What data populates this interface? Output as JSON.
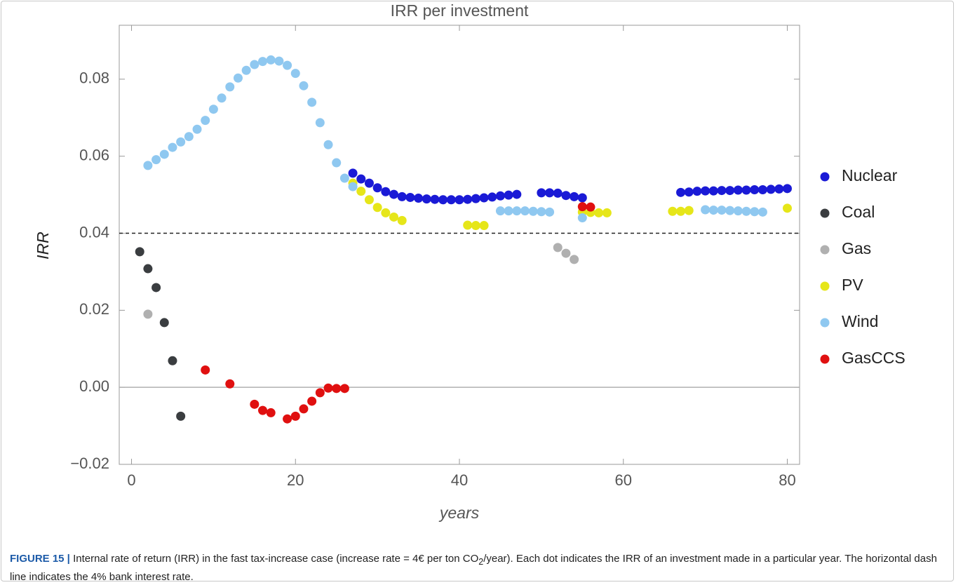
{
  "chart_data": {
    "type": "scatter",
    "title": "IRR per investment",
    "xlabel": "years",
    "ylabel": "IRR",
    "xlim": [
      -1.5,
      81.5
    ],
    "xticks": [
      0,
      20,
      40,
      60,
      80
    ],
    "ylim": [
      -0.02,
      0.094
    ],
    "yticks": [
      {
        "value": -0.02,
        "label": "−0.02"
      },
      {
        "value": 0,
        "label": "0.00"
      },
      0.02,
      0.04,
      0.06,
      0.08
    ],
    "hlines": [
      {
        "value": 0.04,
        "dashed": true,
        "color": "#222222"
      },
      {
        "value": 0,
        "dashed": false,
        "color": "#b0b0b0"
      }
    ],
    "legend": "right",
    "series": [
      {
        "name": "Nuclear",
        "color": "#1a1ad6",
        "x": [
          27,
          28,
          29,
          30,
          31,
          32,
          33,
          34,
          35,
          36,
          37,
          38,
          39,
          40,
          41,
          42,
          43,
          44,
          45,
          46,
          47,
          50,
          51,
          52,
          53,
          54,
          55,
          67,
          68,
          69,
          70,
          71,
          72,
          73,
          74,
          75,
          76,
          77,
          78,
          79,
          80
        ],
        "values": [
          0.0556,
          0.0541,
          0.053,
          0.0518,
          0.0508,
          0.0501,
          0.0495,
          0.0493,
          0.0491,
          0.0489,
          0.0488,
          0.0487,
          0.0487,
          0.0487,
          0.0488,
          0.049,
          0.0492,
          0.0494,
          0.0497,
          0.0499,
          0.0501,
          0.0505,
          0.0505,
          0.0504,
          0.0498,
          0.0495,
          0.0492,
          0.0506,
          0.0507,
          0.0509,
          0.051,
          0.051,
          0.0511,
          0.0511,
          0.0512,
          0.0512,
          0.0513,
          0.0513,
          0.0514,
          0.0515,
          0.0516
        ]
      },
      {
        "name": "Coal",
        "color": "#3a3d40",
        "x": [
          1,
          2,
          3,
          4,
          5,
          6
        ],
        "values": [
          0.0352,
          0.0308,
          0.0259,
          0.0168,
          0.0069,
          -0.0075
        ]
      },
      {
        "name": "Gas",
        "color": "#b0b0b0",
        "x": [
          2,
          52,
          53,
          54
        ],
        "values": [
          0.019,
          0.0363,
          0.0348,
          0.0332
        ]
      },
      {
        "name": "PV",
        "color": "#e6e619",
        "x": [
          27,
          28,
          29,
          30,
          31,
          32,
          33,
          41,
          42,
          43,
          55,
          56,
          57,
          58,
          66,
          67,
          68,
          80
        ],
        "values": [
          0.053,
          0.0509,
          0.0487,
          0.0467,
          0.0453,
          0.0442,
          0.0433,
          0.0421,
          0.042,
          0.042,
          0.0455,
          0.0454,
          0.0453,
          0.0453,
          0.0457,
          0.0457,
          0.0459,
          0.0465
        ]
      },
      {
        "name": "Wind",
        "color": "#8fc8f0",
        "x": [
          2,
          3,
          4,
          5,
          6,
          7,
          8,
          9,
          10,
          11,
          12,
          13,
          14,
          15,
          16,
          17,
          18,
          19,
          20,
          21,
          22,
          23,
          24,
          25,
          26,
          27,
          45,
          46,
          47,
          48,
          49,
          50,
          51,
          55,
          70,
          71,
          72,
          73,
          74,
          75,
          76,
          77
        ],
        "values": [
          0.0576,
          0.0591,
          0.0605,
          0.0623,
          0.0637,
          0.0651,
          0.067,
          0.0693,
          0.0722,
          0.0751,
          0.078,
          0.0803,
          0.0823,
          0.0838,
          0.0846,
          0.085,
          0.0847,
          0.0836,
          0.0815,
          0.0783,
          0.074,
          0.0687,
          0.063,
          0.0583,
          0.0543,
          0.0521,
          0.0458,
          0.0458,
          0.0458,
          0.0458,
          0.0457,
          0.0456,
          0.0455,
          0.044,
          0.0461,
          0.046,
          0.046,
          0.0459,
          0.0458,
          0.0457,
          0.0456,
          0.0455
        ]
      },
      {
        "name": "GasCCS",
        "color": "#e01010",
        "x": [
          9,
          12,
          15,
          16,
          17,
          19,
          20,
          21,
          22,
          23,
          24,
          25,
          26,
          55,
          56
        ],
        "values": [
          0.0045,
          0.0009,
          -0.0044,
          -0.006,
          -0.0066,
          -0.0082,
          -0.0075,
          -0.0056,
          -0.0036,
          -0.0014,
          -0.0002,
          -0.0003,
          -0.0003,
          0.0469,
          0.0468
        ]
      }
    ]
  },
  "caption": {
    "label": "FIGURE 15 |",
    "text": "Internal rate of return (IRR) in the fast tax-increase case (increase rate = 4€ per ton CO",
    "subscript": "2",
    "rest": "/year). Each dot indicates the IRR of an investment made in a particular year. The horizontal dash line indicates the 4% bank interest rate."
  }
}
